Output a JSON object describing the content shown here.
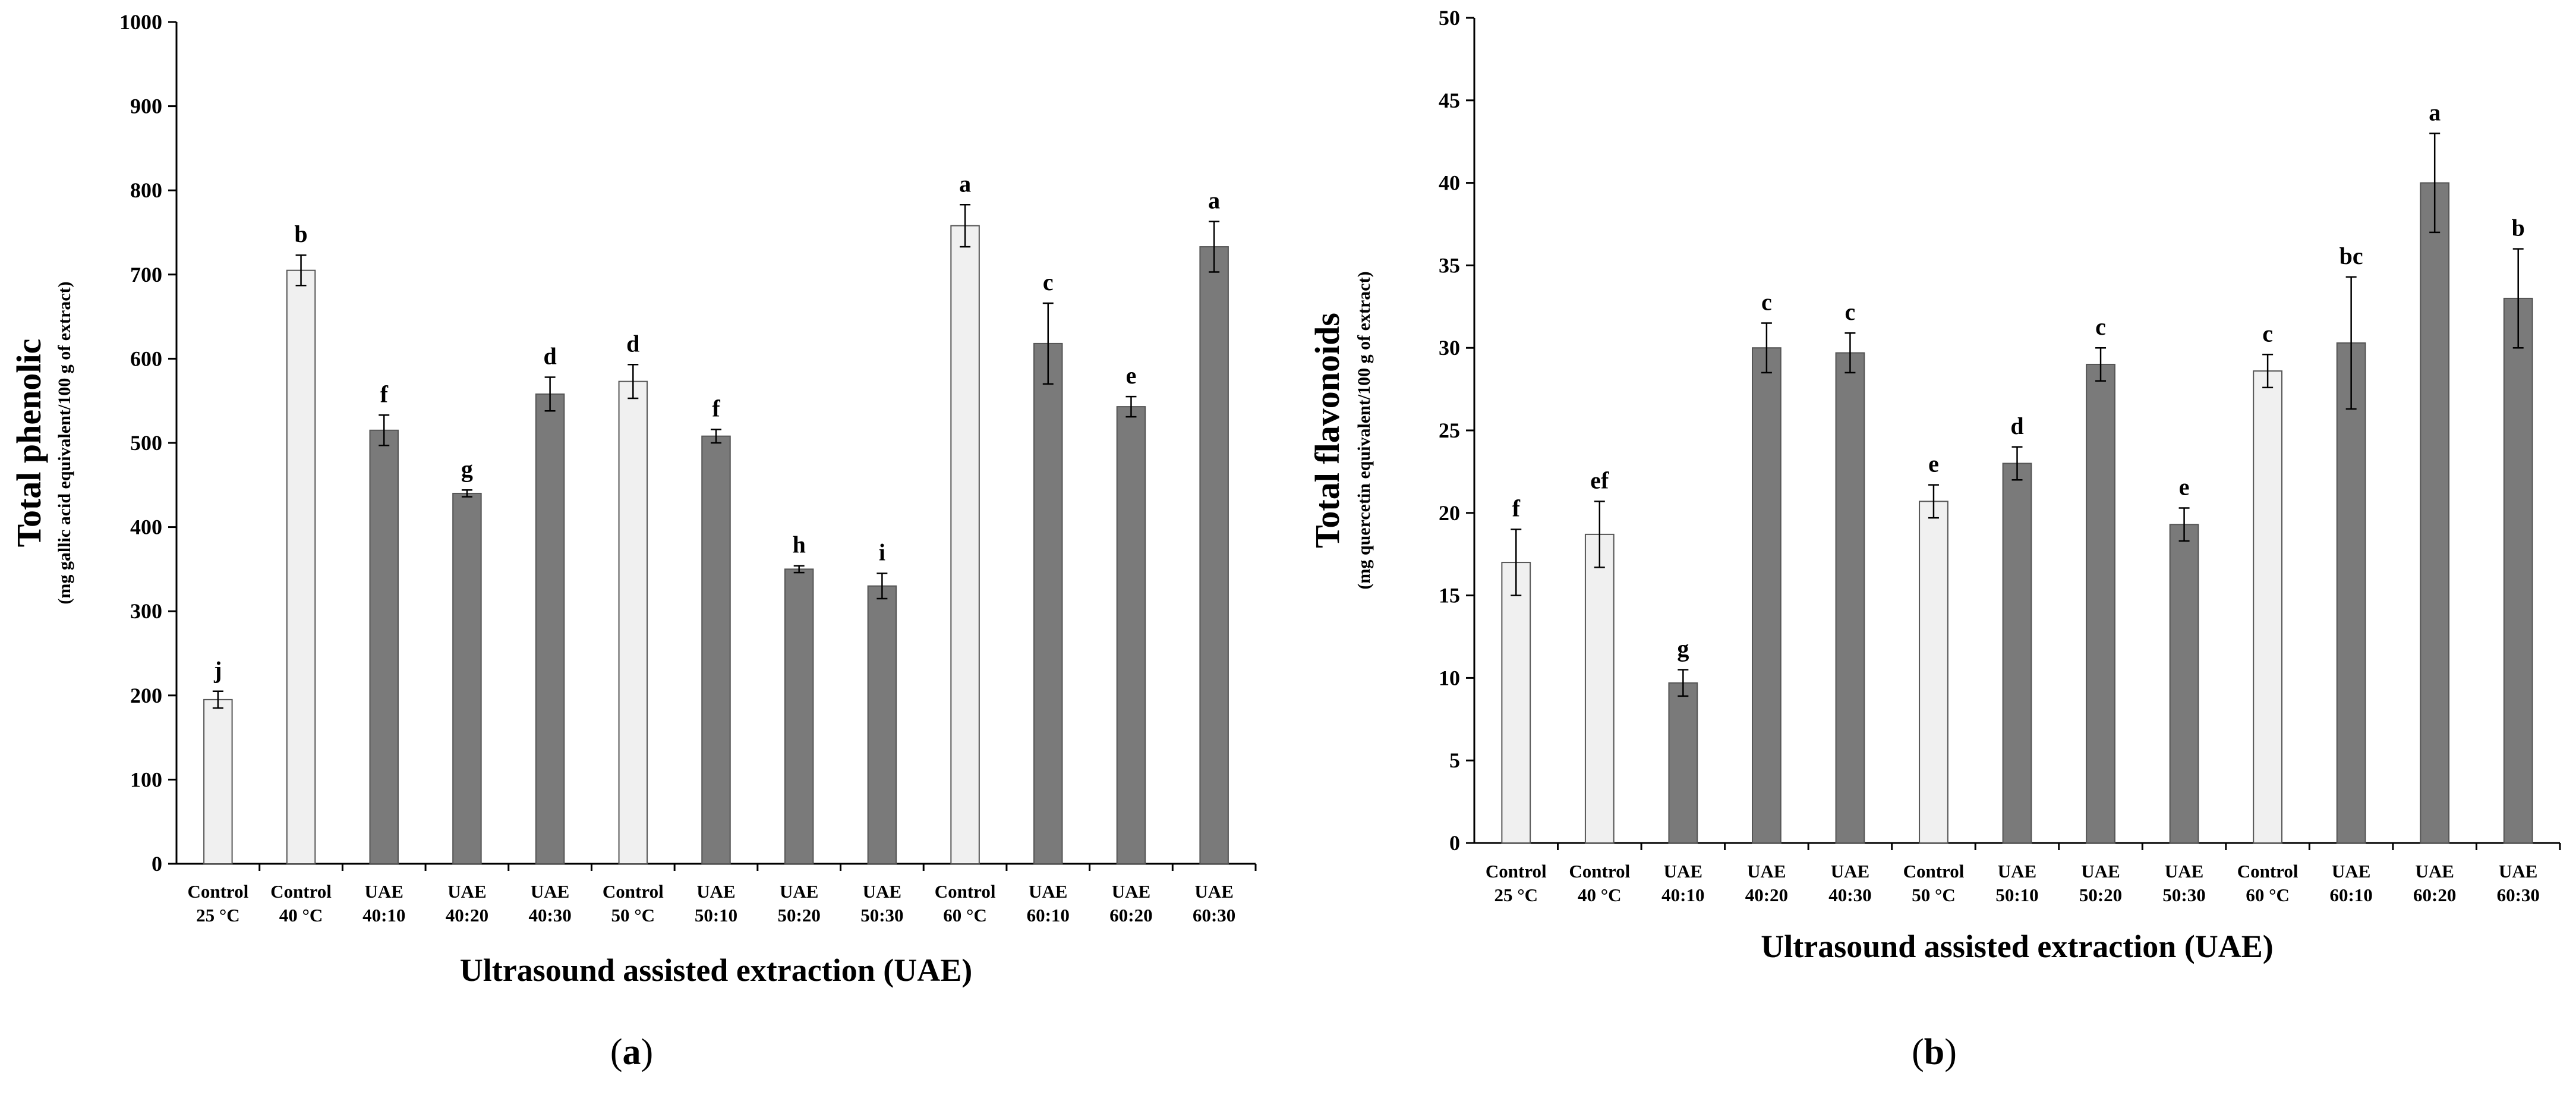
{
  "colors": {
    "control": "#f0f0f0",
    "uae": "#7a7a7a",
    "axis": "#000000",
    "bar_edge": "#555555"
  },
  "chart_data": [
    {
      "type": "bar",
      "panel": "(a)",
      "panel_letter": "a",
      "ylabel": "Total phenolic",
      "ylabel_sub": "(mg gallic acid equivalent/100 g of extract)",
      "xlabel": "Ultrasound assisted extraction (UAE)",
      "ylim": [
        0,
        1000
      ],
      "yticks": [
        0,
        100,
        200,
        300,
        400,
        500,
        600,
        700,
        800,
        900,
        1000
      ],
      "categories": [
        [
          "Control",
          "25 °C"
        ],
        [
          "Control",
          "40 °C"
        ],
        [
          "UAE",
          "40:10"
        ],
        [
          "UAE",
          "40:20"
        ],
        [
          "UAE",
          "40:30"
        ],
        [
          "Control",
          "50 °C"
        ],
        [
          "UAE",
          "50:10"
        ],
        [
          "UAE",
          "50:20"
        ],
        [
          "UAE",
          "50:30"
        ],
        [
          "Control",
          "60 °C"
        ],
        [
          "UAE",
          "60:10"
        ],
        [
          "UAE",
          "60:20"
        ],
        [
          "UAE",
          "60:30"
        ]
      ],
      "groups": [
        "control",
        "control",
        "uae",
        "uae",
        "uae",
        "control",
        "uae",
        "uae",
        "uae",
        "control",
        "uae",
        "uae",
        "uae"
      ],
      "values": [
        195,
        705,
        515,
        440,
        558,
        573,
        508,
        350,
        330,
        758,
        618,
        543,
        733
      ],
      "errors": [
        10,
        18,
        18,
        4,
        20,
        20,
        8,
        4,
        15,
        25,
        48,
        12,
        30
      ],
      "letters": [
        "j",
        "b",
        "f",
        "g",
        "d",
        "d",
        "f",
        "h",
        "i",
        "a",
        "c",
        "e",
        "a"
      ]
    },
    {
      "type": "bar",
      "panel": "(b)",
      "panel_letter": "b",
      "ylabel": "Total flavonoids",
      "ylabel_sub": "(mg quercetin equivalent/100 g of extract)",
      "xlabel": "Ultrasound assisted extraction (UAE)",
      "ylim": [
        0,
        50
      ],
      "yticks": [
        0,
        5,
        10,
        15,
        20,
        25,
        30,
        35,
        40,
        45,
        50
      ],
      "categories": [
        [
          "Control",
          "25 °C"
        ],
        [
          "Control",
          "40 °C"
        ],
        [
          "UAE",
          "40:10"
        ],
        [
          "UAE",
          "40:20"
        ],
        [
          "UAE",
          "40:30"
        ],
        [
          "Control",
          "50 °C"
        ],
        [
          "UAE",
          "50:10"
        ],
        [
          "UAE",
          "50:20"
        ],
        [
          "UAE",
          "50:30"
        ],
        [
          "Control",
          "60 °C"
        ],
        [
          "UAE",
          "60:10"
        ],
        [
          "UAE",
          "60:20"
        ],
        [
          "UAE",
          "60:30"
        ]
      ],
      "groups": [
        "control",
        "control",
        "uae",
        "uae",
        "uae",
        "control",
        "uae",
        "uae",
        "uae",
        "control",
        "uae",
        "uae",
        "uae"
      ],
      "values": [
        17.0,
        18.7,
        9.7,
        30.0,
        29.7,
        20.7,
        23.0,
        29.0,
        19.3,
        28.6,
        30.3,
        40.0,
        33.0
      ],
      "errors": [
        2.0,
        2.0,
        0.8,
        1.5,
        1.2,
        1.0,
        1.0,
        1.0,
        1.0,
        1.0,
        4.0,
        3.0,
        3.0
      ],
      "letters": [
        "f",
        "ef",
        "g",
        "c",
        "c",
        "e",
        "d",
        "c",
        "e",
        "c",
        "bc",
        "a",
        "b"
      ]
    }
  ]
}
